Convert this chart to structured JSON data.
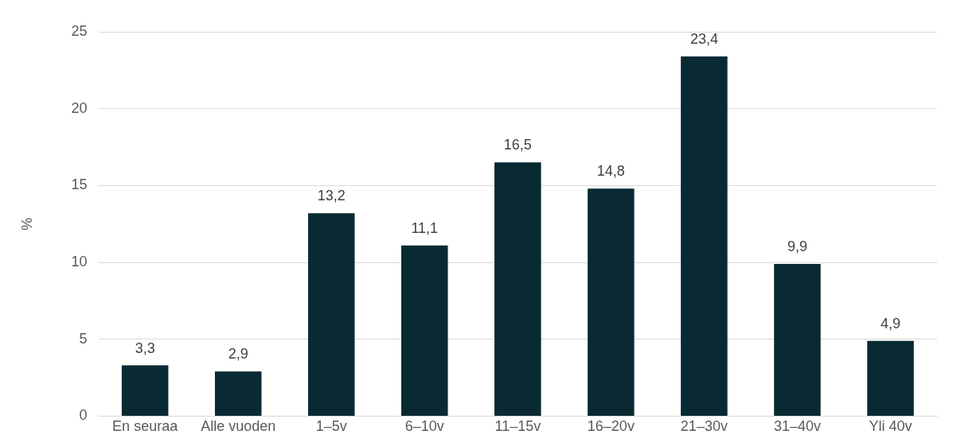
{
  "chart_data": {
    "type": "bar",
    "ylabel": "%",
    "categories": [
      "En seuraa",
      "Alle vuoden",
      "1–5v",
      "6–10v",
      "11–15v",
      "16–20v",
      "21–30v",
      "31–40v",
      "Yli 40v"
    ],
    "values": [
      3.3,
      2.9,
      13.2,
      11.1,
      16.5,
      14.8,
      23.4,
      9.9,
      4.9
    ],
    "value_labels": [
      "3,3",
      "2,9",
      "13,2",
      "11,1",
      "16,5",
      "14,8",
      "23,4",
      "9,9",
      "4,9"
    ],
    "color": "#0a2a33",
    "ylim": [
      0,
      25
    ],
    "yticks": [
      0,
      5,
      10,
      15,
      20,
      25
    ],
    "grid": "y"
  }
}
